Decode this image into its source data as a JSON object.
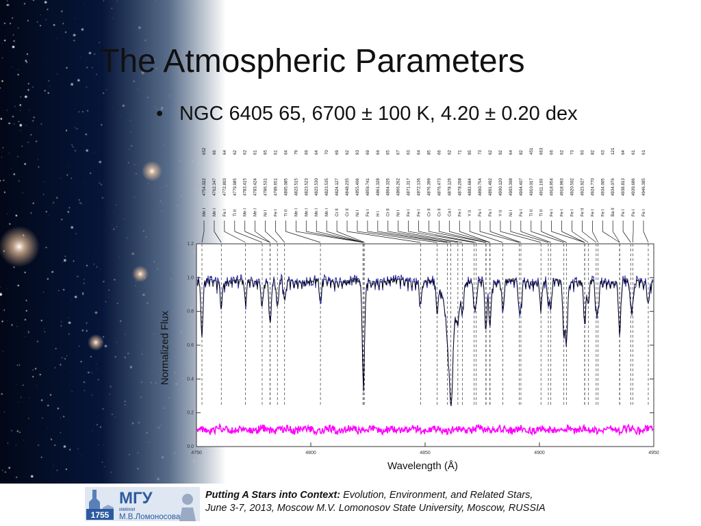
{
  "slide": {
    "title": "The Atmospheric Parameters",
    "bullet_symbol": "•",
    "bullet_text": "NGC 6405 65, 6700 ± 100 K, 4.20 ± 0.20 dex"
  },
  "footer": {
    "conference_title": "Putting A Stars into Context:",
    "conference_subtitle": " Evolution, Environment, and Related Stars,",
    "conference_details": "June 3-7, 2013, Moscow M.V. Lomonosov State University, Moscow, RUSSIA",
    "logo_text": "МГУ",
    "logo_small": "имени",
    "logo_name": "М.В.Ломоносова",
    "logo_year": "1755"
  },
  "colors": {
    "observed": "#1a1a9e",
    "model": "#000000",
    "residual": "#ff00ff"
  },
  "chart_data": {
    "type": "line",
    "xlabel": "Wavelength (Å)",
    "ylabel": "Normalized Flux",
    "xlim": [
      4750,
      4850
    ],
    "ylim": [
      0.0,
      1.2
    ],
    "x_ticks": [
      "4750",
      "4800",
      "4850",
      "4900",
      "4950"
    ],
    "y_ticks": [
      "0.0",
      "0.2",
      "0.4",
      "0.6",
      "0.8",
      "1.0",
      "1.2"
    ],
    "series": [
      {
        "role": "observed spectrum"
      },
      {
        "role": "synthetic spectrum"
      },
      {
        "role": "residual"
      }
    ],
    "lines": [
      {
        "ion": "Mn I",
        "wl": "4754.022",
        "ew": "652"
      },
      {
        "ion": "Mn I",
        "wl": "4762.347",
        "ew": "66"
      },
      {
        "ion": "Fe I",
        "wl": "4772.803",
        "ew": "64"
      },
      {
        "ion": "Ti II",
        "wl": "4779.985",
        "ew": "62"
      },
      {
        "ion": "Mn I",
        "wl": "4783.415",
        "ew": "62"
      },
      {
        "ion": "Mn I",
        "wl": "4783.424",
        "ew": "61"
      },
      {
        "ion": "Ni I",
        "wl": "4786.531",
        "ew": "95"
      },
      {
        "ion": "Fe I",
        "wl": "4789.651",
        "ew": "61"
      },
      {
        "ion": "Ti II",
        "wl": "4805.085",
        "ew": "64"
      },
      {
        "ion": "Mn I",
        "wl": "4823.515",
        "ew": "79"
      },
      {
        "ion": "Mn I",
        "wl": "4823.523",
        "ew": "69"
      },
      {
        "ion": "Mn I",
        "wl": "4823.530",
        "ew": "64"
      },
      {
        "ion": "Mn I",
        "wl": "4823.535",
        "ew": "70"
      },
      {
        "ion": "Cr II",
        "wl": "4824.127",
        "ew": "69"
      },
      {
        "ion": "Cr II",
        "wl": "4848.235",
        "ew": "62"
      },
      {
        "ion": "Ni I",
        "wl": "4855.406",
        "ew": "93"
      },
      {
        "ion": "Fe I",
        "wl": "4859.741",
        "ew": "69"
      },
      {
        "ion": "H I",
        "wl": "4861.328",
        "ew": "66"
      },
      {
        "ion": "Cr II",
        "wl": "4864.326",
        "ew": "65"
      },
      {
        "ion": "Ni I",
        "wl": "4866.262",
        "ew": "67"
      },
      {
        "ion": "Fe I",
        "wl": "4871.317",
        "ew": "63"
      },
      {
        "ion": "Fe I",
        "wl": "4872.136",
        "ew": "64"
      },
      {
        "ion": "Cr II",
        "wl": "4876.399",
        "ew": "85"
      },
      {
        "ion": "Cr II",
        "wl": "4876.473",
        "ew": "66"
      },
      {
        "ion": "Ca I",
        "wl": "4878.126",
        "ew": "62"
      },
      {
        "ion": "Fe I",
        "wl": "4878.208",
        "ew": "71"
      },
      {
        "ion": "Y II",
        "wl": "4883.684",
        "ew": "95"
      },
      {
        "ion": "Fe I",
        "wl": "4890.754",
        "ew": "73"
      },
      {
        "ion": "Fe I",
        "wl": "4891.492",
        "ew": "62"
      },
      {
        "ion": "Y II",
        "wl": "4900.120",
        "ew": "92"
      },
      {
        "ion": "Ni I",
        "wl": "4903.308",
        "ew": "64"
      },
      {
        "ion": "Fe I",
        "wl": "4904.407",
        "ew": "82"
      },
      {
        "ion": "Ti II",
        "wl": "4910.017",
        "ew": "451"
      },
      {
        "ion": "Ti II",
        "wl": "4911.193",
        "ew": "663"
      },
      {
        "ion": "Fe I",
        "wl": "4918.954",
        "ew": "66"
      },
      {
        "ion": "Fe I",
        "wl": "4918.993",
        "ew": "62"
      },
      {
        "ion": "Fe I",
        "wl": "4920.502",
        "ew": "73"
      },
      {
        "ion": "Fe II",
        "wl": "4923.927",
        "ew": "93"
      },
      {
        "ion": "Fe I",
        "wl": "4924.770",
        "ew": "82"
      },
      {
        "ion": "Fe I",
        "wl": "4934.005",
        "ew": "63"
      },
      {
        "ion": "Ba II",
        "wl": "4934.076",
        "ew": "121"
      },
      {
        "ion": "Fe I",
        "wl": "4938.813",
        "ew": "64"
      },
      {
        "ion": "Fe I",
        "wl": "4939.686",
        "ew": "61"
      },
      {
        "ion": "Fe I",
        "wl": "4946.385",
        "ew": "61"
      }
    ]
  }
}
